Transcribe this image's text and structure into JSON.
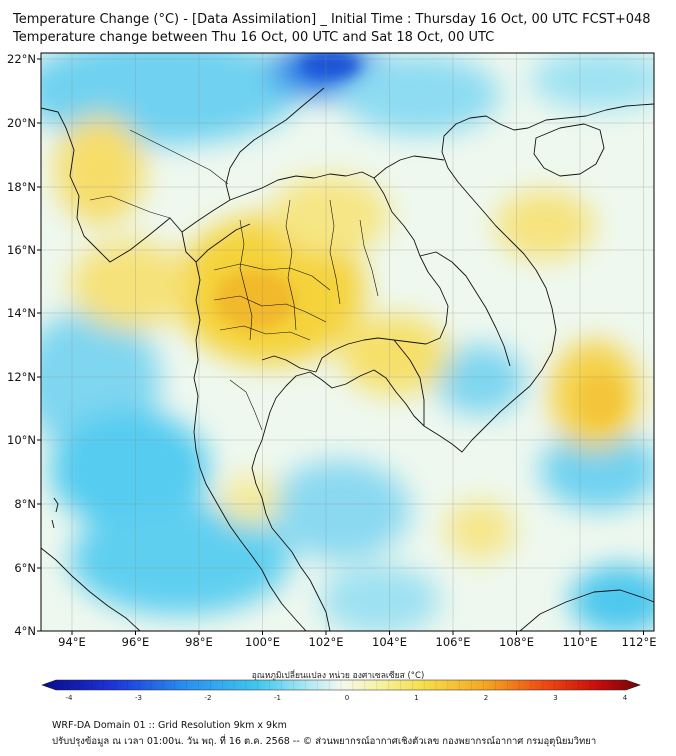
{
  "title_line1": "Temperature Change (°C) - [Data Assimilation] _ Initial Time : Thursday 16 Oct, 00 UTC FCST+048",
  "title_line2": "Temperature change between Thu 16 Oct, 00 UTC and Sat 18 Oct, 00 UTC",
  "lon_ticks": [
    "94°E",
    "96°E",
    "98°E",
    "100°E",
    "102°E",
    "104°E",
    "106°E",
    "108°E",
    "110°E",
    "112°E"
  ],
  "lat_ticks": [
    "22°N",
    "20°N",
    "18°N",
    "16°N",
    "14°N",
    "12°N",
    "10°N",
    "8°N",
    "6°N",
    "4°N"
  ],
  "colorbar": {
    "label": "อุณหภูมิเปลี่ยนแปลง หน่วย องศาเซลเซียส (°C)",
    "ticks": [
      "-4",
      "-3",
      "-2",
      "-1",
      "0",
      "1",
      "2",
      "3",
      "4"
    ],
    "range": [
      -4,
      4
    ]
  },
  "footer_line1": "WRF-DA Domain 01 :: Grid Resolution 9km x 9km",
  "footer_line2": "ปรับปรุงข้อมูล ณ เวลา 01:00น. วัน พฤ. ที่ 16 ต.ค. 2568 -- © ส่วนพยากรณ์อากาศเชิงตัวเลข กองพยากรณ์อากาศ กรมอุตุนิยมวิทยา",
  "colors": {
    "warm": "#f6cf2a",
    "cool": "#41c4ee",
    "neutral": "#f5f7e6"
  }
}
